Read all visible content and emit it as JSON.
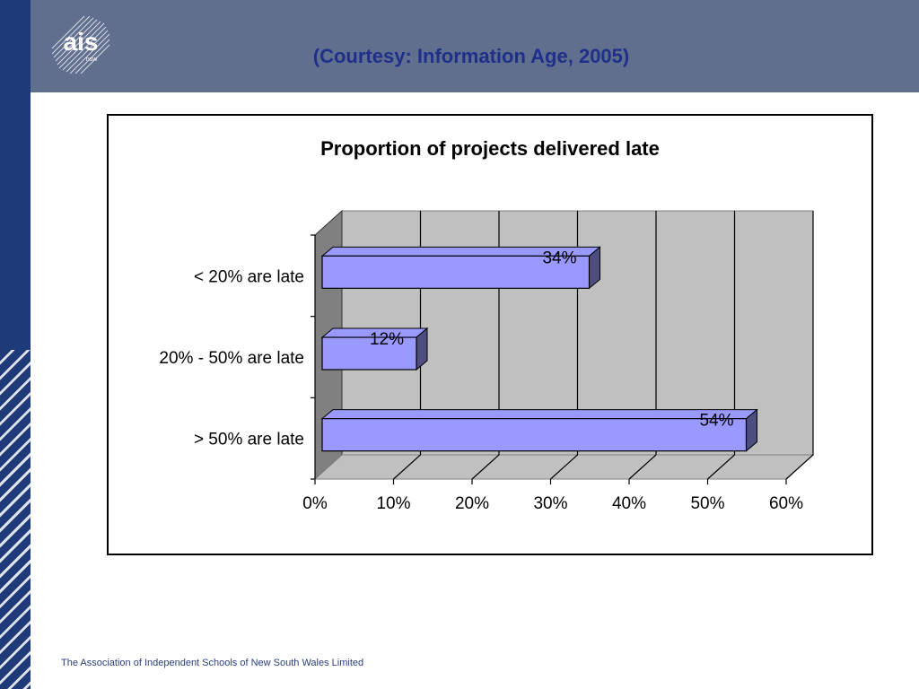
{
  "header": {
    "courtesy_text": "(Courtesy: Information Age, 2005)",
    "logo_text": "ais",
    "logo_subtext": "nsw"
  },
  "footer": {
    "organization": "The Association of Independent Schools of New South Wales Limited"
  },
  "colors": {
    "header_band": "#616f8f",
    "left_stripe": "#1f3a78",
    "bar_face": "#9999ff",
    "bar_dark": "#4d4d80",
    "plot_back": "#c0c0c0"
  },
  "chart_data": {
    "type": "bar",
    "orientation": "horizontal",
    "style": "3d",
    "title": "Proportion of projects delivered late",
    "categories": [
      "< 20% are late",
      "20% - 50% are late",
      "> 50% are late"
    ],
    "values": [
      34,
      12,
      54
    ],
    "data_labels": [
      "34%",
      "12%",
      "54%"
    ],
    "x_ticks": [
      "0%",
      "10%",
      "20%",
      "30%",
      "40%",
      "50%",
      "60%"
    ],
    "xlim": [
      0,
      60
    ],
    "xlabel": "",
    "ylabel": "",
    "grid": true,
    "legend": "none"
  }
}
